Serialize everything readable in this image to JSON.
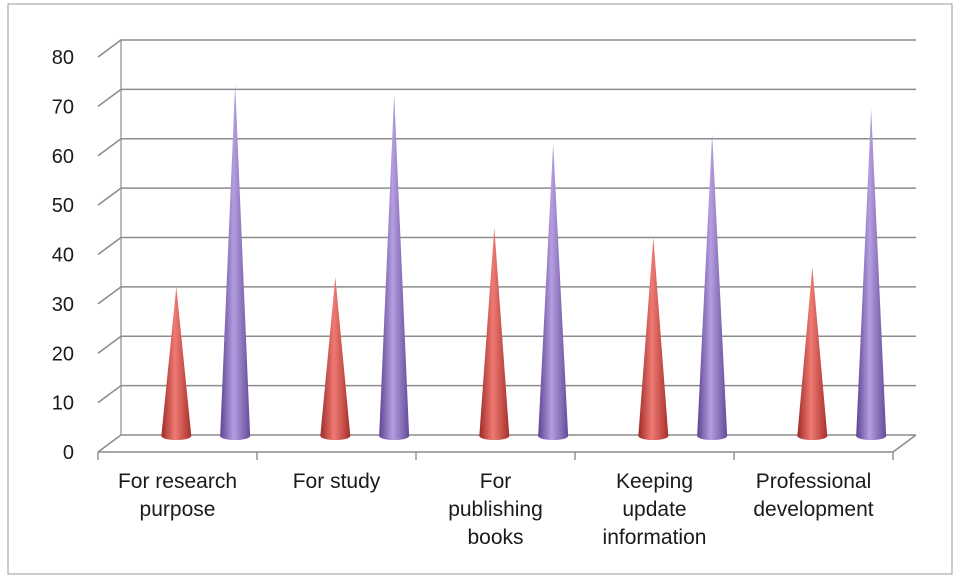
{
  "chart_data": {
    "type": "bar",
    "bar_shape": "cone",
    "style": "3d",
    "title": "",
    "xlabel": "",
    "ylabel": "",
    "ylim": [
      0,
      80
    ],
    "yticks": [
      "0",
      "10",
      "20",
      "30",
      "40",
      "50",
      "60",
      "70",
      "80"
    ],
    "grid": true,
    "legend": "none",
    "categories": [
      [
        "For research",
        "purpose"
      ],
      [
        "For study"
      ],
      [
        "For",
        "publishing",
        "books"
      ],
      [
        "Keeping",
        "update",
        "information"
      ],
      [
        "Professional",
        "development"
      ]
    ],
    "series": [
      {
        "color": "#d9534f",
        "values": [
          30,
          32,
          42,
          40,
          34
        ]
      },
      {
        "color": "#8a6bc0",
        "values": [
          71,
          69,
          59,
          61,
          66
        ]
      }
    ]
  }
}
